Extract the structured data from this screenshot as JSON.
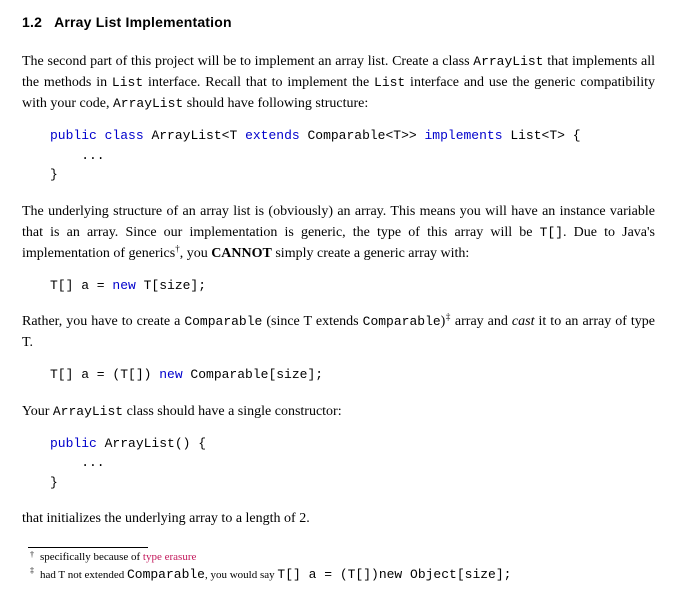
{
  "colors": {
    "text": "#000000",
    "background": "#ffffff",
    "keyword": "#0000cc",
    "link": "#c2185b",
    "rule": "#000000"
  },
  "fonts": {
    "body_family": "Georgia, Times New Roman, serif",
    "body_size_pt": 11,
    "heading_family": "Helvetica, Arial, sans-serif",
    "heading_size_pt": 11,
    "heading_weight": "bold",
    "mono_family": "Courier New, monospace",
    "mono_size_pt": 10,
    "footnote_size_pt": 8
  },
  "heading": {
    "number": "1.2",
    "title": "Array List Implementation"
  },
  "para1": {
    "a": "The second part of this project will be to implement an array list. Create a class ",
    "cls": "ArrayList",
    "b": " that implements all the methods in ",
    "iface": "List",
    "c": " interface. Recall that to implement the ",
    "iface2": "List",
    "d": " interface and use the generic compatibility with your code, ",
    "cls2": "ArrayList",
    "e": " should have following structure:"
  },
  "code1": {
    "kw_public": "public",
    "kw_class": "class",
    "name": " ArrayList<T ",
    "kw_extends": "extends",
    "cmp": " Comparable<T>> ",
    "kw_implements": "implements",
    "tail": " List<T> {",
    "body": "    ...",
    "close": "}"
  },
  "para2": {
    "a": "The underlying structure of an array list is (obviously) an array. This means you will have an instance variable that is an array. Since our implementation is generic, the type of this array will be ",
    "tarr": "T[]",
    "b": ". Due to Java's implementation of generics",
    "dagger": "†",
    "c": ", you ",
    "cannot": "CANNOT",
    "d": " simply create a generic array with:"
  },
  "code2": {
    "lead": "T[] a = ",
    "kw_new": "new",
    "tail": " T[size];"
  },
  "para3": {
    "a": "Rather, you have to create a ",
    "cmp": "Comparable",
    "b": " (since T extends ",
    "cmp2": "Comparable",
    "c": ")",
    "ddagger": "‡",
    "d": " array and ",
    "cast": "cast",
    "e": " it to an array of type T."
  },
  "code3": {
    "lead": "T[] a = (T[]) ",
    "kw_new": "new",
    "tail": " Comparable[size];"
  },
  "para4": {
    "a": "Your ",
    "cls": "ArrayList",
    "b": " class should have a single constructor:"
  },
  "code4": {
    "kw_public": "public",
    "sig": " ArrayList() {",
    "body": "    ...",
    "close": "}"
  },
  "para5": {
    "text": "that initializes the underlying array to a length of 2."
  },
  "footnotes": {
    "f1": {
      "mark": "†",
      "a": "specifically because of ",
      "link": "type erasure"
    },
    "f2": {
      "mark": "‡",
      "a": "had T not extended ",
      "cmp": "Comparable",
      "b": ", you would say ",
      "code": "T[] a = (T[])new Object[size];"
    }
  }
}
